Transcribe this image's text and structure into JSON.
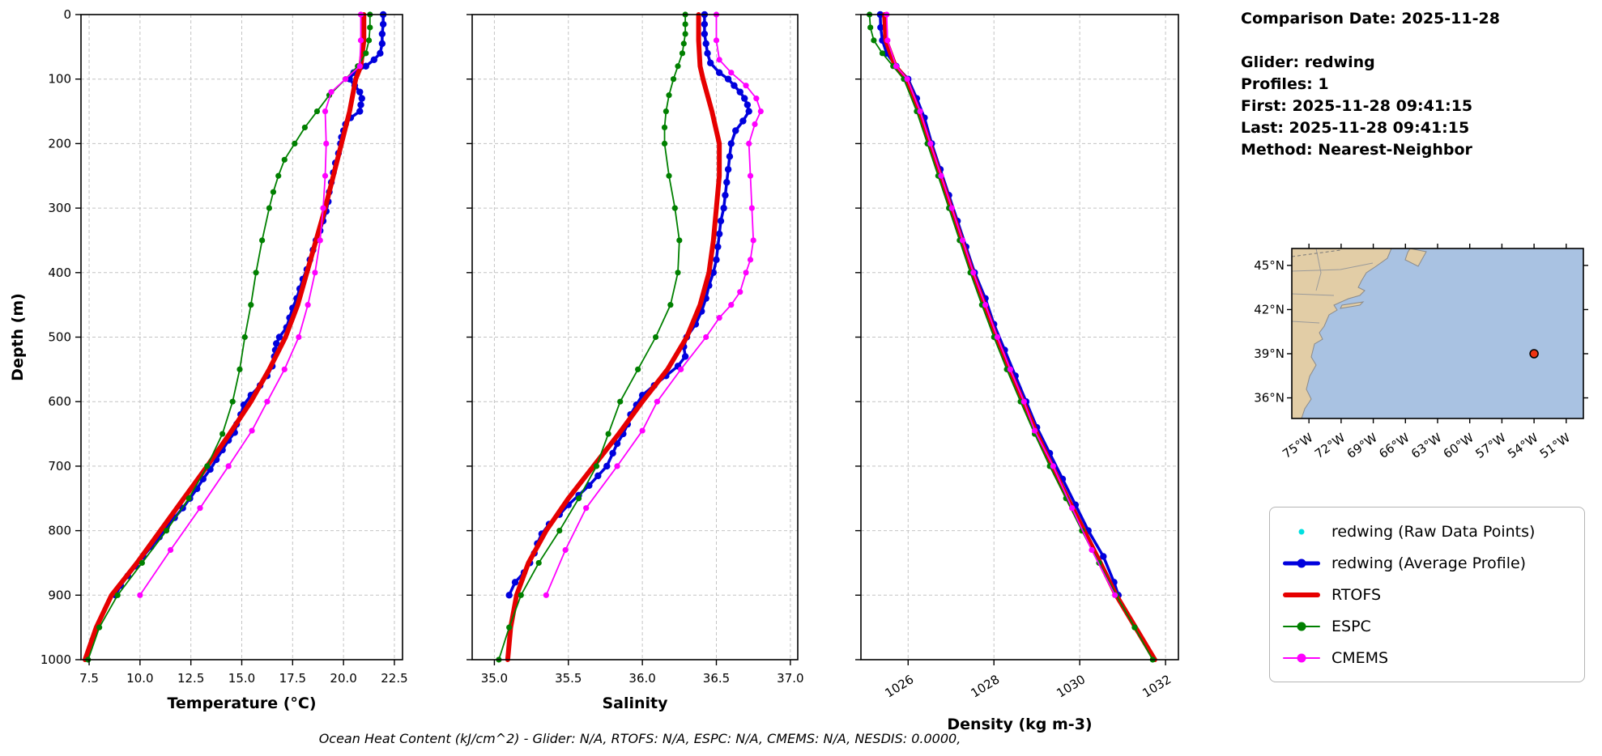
{
  "info": {
    "lines": [
      "Comparison Date: 2025-11-28",
      "",
      "Glider: redwing",
      "Profiles: 1",
      "First: 2025-11-28 09:41:15",
      "Last: 2025-11-28 09:41:15",
      "Method: Nearest-Neighbor"
    ]
  },
  "footer": {
    "text": "Ocean Heat Content (kJ/cm^2) - Glider: N/A,  RTOFS: N/A,  ESPC: N/A,  CMEMS: N/A,  NESDIS: 0.0000,"
  },
  "legend": {
    "items": [
      {
        "label": "redwing (Raw Data Points)",
        "color": "#00e0e0",
        "style": "dot",
        "lw": 0
      },
      {
        "label": "redwing (Average Profile)",
        "color": "#0000dd",
        "style": "line-dot",
        "lw": 5
      },
      {
        "label": "RTOFS",
        "color": "#e60000",
        "style": "line",
        "lw": 6
      },
      {
        "label": "ESPC",
        "color": "#008000",
        "style": "line-dot",
        "lw": 2
      },
      {
        "label": "CMEMS",
        "color": "#ff00ff",
        "style": "line-dot",
        "lw": 2
      }
    ]
  },
  "map": {
    "lat_labels": [
      "45°N",
      "42°N",
      "39°N",
      "36°N"
    ],
    "lon_labels": [
      "75°W",
      "72°W",
      "69°W",
      "66°W",
      "63°W",
      "60°W",
      "57°W",
      "54°W",
      "51°W"
    ],
    "ocean_color": "#a9c2e2",
    "land_color": "#e2cda6",
    "marker_color": "#ee3311"
  },
  "chart_data": [
    {
      "type": "line",
      "name": "temperature",
      "xlabel": "Temperature (°C)",
      "ylabel": "Depth (m)",
      "xlim": [
        7.1,
        22.9
      ],
      "ylim": [
        0,
        1000
      ],
      "x_ticks": [
        7.5,
        10.0,
        12.5,
        15.0,
        17.5,
        20.0,
        22.5
      ],
      "x_tick_labels": [
        "7.5",
        "10.0",
        "12.5",
        "15.0",
        "17.5",
        "20.0",
        "22.5"
      ],
      "y_ticks": [
        0,
        100,
        200,
        300,
        400,
        500,
        600,
        700,
        800,
        900,
        1000
      ],
      "y_tick_labels": [
        "0",
        "100",
        "200",
        "300",
        "400",
        "500",
        "600",
        "700",
        "800",
        "900",
        "1000"
      ],
      "grid": true,
      "series": [
        {
          "name": "redwing-average",
          "color": "#0000dd",
          "lw": 3.5,
          "marker": 4.2,
          "depth": [
            0,
            15,
            30,
            45,
            60,
            70,
            80,
            90,
            100,
            110,
            120,
            130,
            140,
            150,
            160,
            170,
            180,
            190,
            200,
            215,
            230,
            245,
            260,
            275,
            290,
            305,
            320,
            335,
            350,
            365,
            380,
            395,
            410,
            425,
            440,
            455,
            470,
            485,
            500,
            510,
            520,
            530,
            545,
            560,
            575,
            590,
            605,
            620,
            635,
            648,
            660,
            675,
            690,
            705,
            720,
            735,
            750,
            765,
            780,
            795,
            810,
            825,
            840,
            855,
            870,
            885,
            900
          ],
          "x": [
            21.95,
            21.95,
            21.9,
            21.9,
            21.8,
            21.5,
            21.1,
            20.5,
            20.3,
            20.55,
            20.8,
            20.9,
            20.85,
            20.8,
            20.35,
            20.1,
            20.0,
            19.9,
            19.85,
            19.75,
            19.6,
            19.5,
            19.4,
            19.3,
            19.25,
            19.15,
            19.0,
            18.85,
            18.65,
            18.5,
            18.35,
            18.2,
            18.0,
            17.85,
            17.7,
            17.5,
            17.35,
            17.2,
            16.85,
            16.7,
            16.65,
            16.6,
            16.5,
            16.25,
            15.9,
            15.45,
            15.1,
            14.95,
            14.75,
            14.65,
            14.35,
            14.05,
            13.75,
            13.45,
            13.1,
            12.8,
            12.45,
            12.1,
            11.7,
            11.3,
            10.95,
            10.55,
            10.15,
            9.8,
            9.4,
            9.05,
            8.8
          ]
        },
        {
          "name": "RTOFS",
          "color": "#e60000",
          "lw": 6,
          "marker": 0,
          "depth": [
            0,
            40,
            80,
            100,
            150,
            200,
            250,
            300,
            350,
            400,
            450,
            500,
            550,
            600,
            650,
            700,
            750,
            800,
            850,
            900,
            950,
            1000
          ],
          "x": [
            21.0,
            21.0,
            20.85,
            20.6,
            20.3,
            19.9,
            19.5,
            19.1,
            18.65,
            18.2,
            17.75,
            17.15,
            16.35,
            15.45,
            14.4,
            13.3,
            12.15,
            11.0,
            9.85,
            8.6,
            7.85,
            7.3
          ]
        },
        {
          "name": "ESPC",
          "color": "#008000",
          "lw": 1.8,
          "marker": 3.6,
          "depth": [
            0,
            20,
            40,
            60,
            80,
            100,
            125,
            150,
            175,
            200,
            225,
            250,
            275,
            300,
            350,
            400,
            450,
            500,
            550,
            600,
            650,
            700,
            750,
            800,
            850,
            900,
            950,
            1000
          ],
          "x": [
            21.3,
            21.3,
            21.25,
            21.1,
            20.7,
            20.1,
            19.3,
            18.7,
            18.1,
            17.6,
            17.1,
            16.8,
            16.55,
            16.35,
            16.0,
            15.7,
            15.45,
            15.15,
            14.9,
            14.55,
            14.05,
            13.3,
            12.4,
            11.3,
            10.1,
            8.9,
            8.0,
            7.45
          ]
        },
        {
          "name": "CMEMS",
          "color": "#ff00ff",
          "lw": 1.8,
          "marker": 3.6,
          "depth": [
            0,
            40,
            80,
            100,
            120,
            150,
            200,
            250,
            300,
            350,
            400,
            450,
            500,
            550,
            600,
            645,
            700,
            765,
            830,
            900
          ],
          "x": [
            20.85,
            20.85,
            20.8,
            20.1,
            19.4,
            19.1,
            19.15,
            19.1,
            19.0,
            18.85,
            18.6,
            18.25,
            17.8,
            17.1,
            16.25,
            15.5,
            14.35,
            12.95,
            11.5,
            10.0
          ]
        }
      ]
    },
    {
      "type": "line",
      "name": "salinity",
      "xlabel": "Salinity",
      "ylabel": "",
      "xlim": [
        34.85,
        37.05
      ],
      "ylim": [
        0,
        1000
      ],
      "x_ticks": [
        35.0,
        35.5,
        36.0,
        36.5,
        37.0
      ],
      "x_tick_labels": [
        "35.0",
        "35.5",
        "36.0",
        "36.5",
        "37.0"
      ],
      "y_ticks": [
        0,
        100,
        200,
        300,
        400,
        500,
        600,
        700,
        800,
        900,
        1000
      ],
      "y_tick_labels": [
        "0",
        "100",
        "200",
        "300",
        "400",
        "500",
        "600",
        "700",
        "800",
        "900",
        "1000"
      ],
      "grid": true,
      "series": [
        {
          "name": "redwing-average",
          "color": "#0000dd",
          "lw": 3.5,
          "marker": 4.2,
          "depth": [
            0,
            15,
            30,
            45,
            60,
            75,
            90,
            100,
            110,
            120,
            130,
            140,
            150,
            165,
            180,
            200,
            220,
            240,
            260,
            280,
            300,
            320,
            340,
            360,
            380,
            400,
            420,
            440,
            460,
            480,
            500,
            515,
            530,
            545,
            560,
            575,
            590,
            605,
            620,
            635,
            650,
            665,
            680,
            700,
            715,
            730,
            745,
            760,
            775,
            790,
            805,
            820,
            835,
            850,
            865,
            880,
            900
          ],
          "x": [
            36.42,
            36.42,
            36.42,
            36.43,
            36.44,
            36.46,
            36.52,
            36.58,
            36.62,
            36.66,
            36.69,
            36.71,
            36.72,
            36.68,
            36.63,
            36.6,
            36.59,
            36.58,
            36.57,
            36.56,
            36.55,
            36.53,
            36.52,
            36.51,
            36.5,
            36.48,
            36.45,
            36.43,
            36.4,
            36.36,
            36.3,
            36.28,
            36.29,
            36.24,
            36.16,
            36.08,
            36.0,
            35.96,
            35.92,
            35.9,
            35.87,
            35.83,
            35.8,
            35.76,
            35.7,
            35.64,
            35.57,
            35.5,
            35.44,
            35.37,
            35.32,
            35.29,
            35.27,
            35.24,
            35.2,
            35.14,
            35.1
          ]
        },
        {
          "name": "RTOFS",
          "color": "#e60000",
          "lw": 6,
          "marker": 0,
          "depth": [
            0,
            40,
            80,
            100,
            150,
            200,
            250,
            300,
            350,
            400,
            450,
            500,
            550,
            600,
            650,
            700,
            750,
            800,
            850,
            900,
            950,
            1000
          ],
          "x": [
            36.38,
            36.38,
            36.39,
            36.41,
            36.47,
            36.52,
            36.52,
            36.5,
            36.48,
            36.45,
            36.39,
            36.3,
            36.17,
            36.0,
            35.84,
            35.67,
            35.5,
            35.35,
            35.23,
            35.15,
            35.11,
            35.09
          ]
        },
        {
          "name": "ESPC",
          "color": "#008000",
          "lw": 1.8,
          "marker": 3.6,
          "depth": [
            0,
            15,
            30,
            45,
            60,
            80,
            100,
            125,
            150,
            175,
            200,
            250,
            300,
            350,
            400,
            450,
            500,
            550,
            600,
            650,
            700,
            750,
            800,
            850,
            900,
            950,
            1000
          ],
          "x": [
            36.29,
            36.29,
            36.29,
            36.28,
            36.27,
            36.24,
            36.21,
            36.18,
            36.16,
            36.15,
            36.15,
            36.18,
            36.22,
            36.25,
            36.24,
            36.19,
            36.09,
            35.97,
            35.85,
            35.77,
            35.69,
            35.57,
            35.44,
            35.3,
            35.18,
            35.1,
            35.03
          ]
        },
        {
          "name": "CMEMS",
          "color": "#ff00ff",
          "lw": 1.8,
          "marker": 3.6,
          "depth": [
            0,
            40,
            70,
            90,
            110,
            130,
            150,
            170,
            200,
            250,
            300,
            350,
            380,
            400,
            430,
            450,
            470,
            500,
            550,
            600,
            645,
            700,
            765,
            830,
            900
          ],
          "x": [
            36.5,
            36.5,
            36.52,
            36.6,
            36.7,
            36.77,
            36.8,
            36.76,
            36.72,
            36.73,
            36.74,
            36.75,
            36.73,
            36.7,
            36.66,
            36.6,
            36.52,
            36.43,
            36.26,
            36.1,
            36.0,
            35.83,
            35.62,
            35.48,
            35.35
          ]
        }
      ]
    },
    {
      "type": "line",
      "name": "density",
      "xlabel": "Density (kg m-3)",
      "ylabel": "",
      "xlim": [
        1024.9,
        1032.3
      ],
      "ylim": [
        0,
        1000
      ],
      "x_ticks": [
        1026,
        1028,
        1030,
        1032
      ],
      "x_tick_labels": [
        "1026",
        "1028",
        "1030",
        "1032"
      ],
      "y_ticks": [
        0,
        100,
        200,
        300,
        400,
        500,
        600,
        700,
        800,
        900,
        1000
      ],
      "y_tick_labels": [
        "0",
        "100",
        "200",
        "300",
        "400",
        "500",
        "600",
        "700",
        "800",
        "900",
        "1000"
      ],
      "grid": true,
      "series": [
        {
          "name": "redwing-average",
          "color": "#0000dd",
          "lw": 3.5,
          "marker": 4.2,
          "depth": [
            0,
            20,
            40,
            60,
            80,
            100,
            130,
            160,
            200,
            240,
            280,
            320,
            360,
            400,
            440,
            480,
            520,
            560,
            600,
            640,
            680,
            720,
            760,
            800,
            840,
            880,
            900
          ],
          "x": [
            1025.35,
            1025.36,
            1025.4,
            1025.5,
            1025.72,
            1026.0,
            1026.2,
            1026.38,
            1026.55,
            1026.75,
            1026.95,
            1027.15,
            1027.35,
            1027.55,
            1027.8,
            1028.0,
            1028.25,
            1028.5,
            1028.75,
            1029.0,
            1029.3,
            1029.6,
            1029.9,
            1030.2,
            1030.55,
            1030.8,
            1030.9
          ]
        },
        {
          "name": "RTOFS",
          "color": "#e60000",
          "lw": 6,
          "marker": 0,
          "depth": [
            0,
            40,
            80,
            100,
            150,
            200,
            250,
            300,
            350,
            400,
            450,
            500,
            550,
            600,
            650,
            700,
            750,
            800,
            850,
            900,
            950,
            1000
          ],
          "x": [
            1025.45,
            1025.48,
            1025.7,
            1025.95,
            1026.25,
            1026.5,
            1026.75,
            1027.0,
            1027.25,
            1027.5,
            1027.78,
            1028.05,
            1028.35,
            1028.68,
            1029.0,
            1029.35,
            1029.72,
            1030.1,
            1030.48,
            1030.85,
            1031.3,
            1031.75
          ]
        },
        {
          "name": "ESPC",
          "color": "#008000",
          "lw": 1.8,
          "marker": 3.6,
          "depth": [
            0,
            20,
            40,
            60,
            80,
            100,
            150,
            200,
            250,
            300,
            350,
            400,
            450,
            500,
            550,
            600,
            650,
            700,
            750,
            800,
            850,
            900,
            950,
            1000
          ],
          "x": [
            1025.1,
            1025.12,
            1025.2,
            1025.4,
            1025.65,
            1025.9,
            1026.2,
            1026.45,
            1026.7,
            1026.95,
            1027.2,
            1027.45,
            1027.72,
            1028.0,
            1028.3,
            1028.62,
            1028.95,
            1029.3,
            1029.68,
            1030.05,
            1030.45,
            1030.85,
            1031.28,
            1031.7
          ]
        },
        {
          "name": "CMEMS",
          "color": "#ff00ff",
          "lw": 1.8,
          "marker": 3.6,
          "depth": [
            0,
            40,
            80,
            100,
            150,
            200,
            250,
            300,
            350,
            400,
            450,
            500,
            550,
            600,
            645,
            700,
            765,
            830,
            900
          ],
          "x": [
            1025.5,
            1025.52,
            1025.72,
            1025.98,
            1026.28,
            1026.52,
            1026.77,
            1027.02,
            1027.27,
            1027.52,
            1027.8,
            1028.08,
            1028.38,
            1028.7,
            1028.95,
            1029.38,
            1029.82,
            1030.28,
            1030.82
          ]
        }
      ]
    }
  ]
}
